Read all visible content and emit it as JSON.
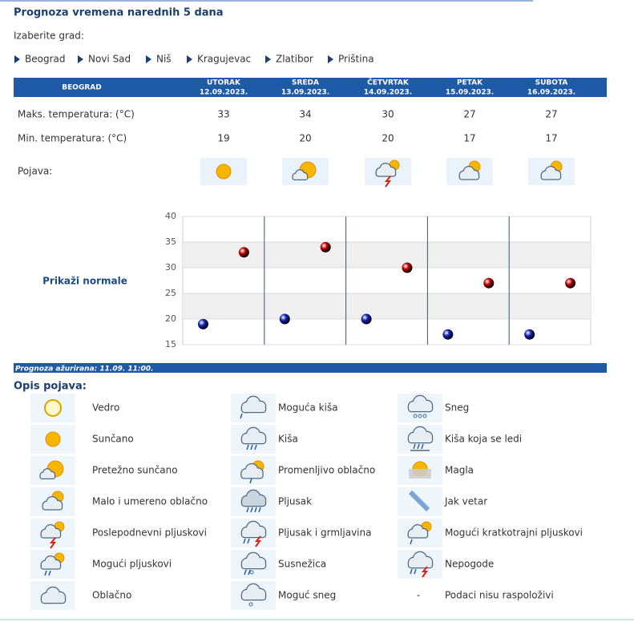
{
  "header": {
    "title": "Prognoza vremena narednih 5 dana",
    "select_label": "Izaberite grad:"
  },
  "cities": [
    "Beograd",
    "Novi Sad",
    "Niš",
    "Kragujevac",
    "Zlatibor",
    "Priština"
  ],
  "table": {
    "city": "BEOGRAD",
    "days": [
      {
        "name": "UTORAK",
        "date": "12.09.2023."
      },
      {
        "name": "SREDA",
        "date": "13.09.2023."
      },
      {
        "name": "ČETVRTAK",
        "date": "14.09.2023."
      },
      {
        "name": "PETAK",
        "date": "15.09.2023."
      },
      {
        "name": "SUBOTA",
        "date": "16.09.2023."
      }
    ],
    "max_label": "Maks. temperatura: (°C)",
    "min_label": "Min. temperatura: (°C)",
    "phenomenon_label": "Pojava:"
  },
  "normals_link": "Prikaži normale",
  "chart_data": {
    "type": "scatter",
    "ylim": [
      15,
      40
    ],
    "yticks": [
      15,
      20,
      25,
      30,
      35,
      40
    ],
    "grid": true,
    "series": [
      {
        "color": "#c00000",
        "values": [
          33,
          34,
          30,
          27,
          27
        ]
      },
      {
        "color": "#1424b8",
        "values": [
          19,
          20,
          20,
          17,
          17
        ]
      }
    ]
  },
  "footer": {
    "updated": "Prognoza ažurirana:  11.09.  11:00."
  },
  "legend": {
    "title": "Opis pojava:",
    "items": [
      {
        "label": "Vedro"
      },
      {
        "label": "Sunčano"
      },
      {
        "label": "Pretežno sunčano"
      },
      {
        "label": "Malo i umereno oblačno"
      },
      {
        "label": "Poslepodnevni pljuskovi"
      },
      {
        "label": "Mogući pljuskovi"
      },
      {
        "label": "Oblačno"
      },
      {
        "label": "Moguća kiša"
      },
      {
        "label": "Kiša"
      },
      {
        "label": "Promenljivo oblačno"
      },
      {
        "label": "Pljusak"
      },
      {
        "label": "Pljusak i grmljavina"
      },
      {
        "label": "Susnežica"
      },
      {
        "label": "Moguć sneg"
      },
      {
        "label": "Sneg"
      },
      {
        "label": "Kiša koja se ledi"
      },
      {
        "label": "Magla"
      },
      {
        "label": "Jak vetar"
      },
      {
        "label": "Mogući kratkotrajni pljuskovi"
      },
      {
        "label": "Nepogode"
      },
      {
        "symbol": "-",
        "label": "Podaci nisu raspoloživi"
      }
    ]
  }
}
